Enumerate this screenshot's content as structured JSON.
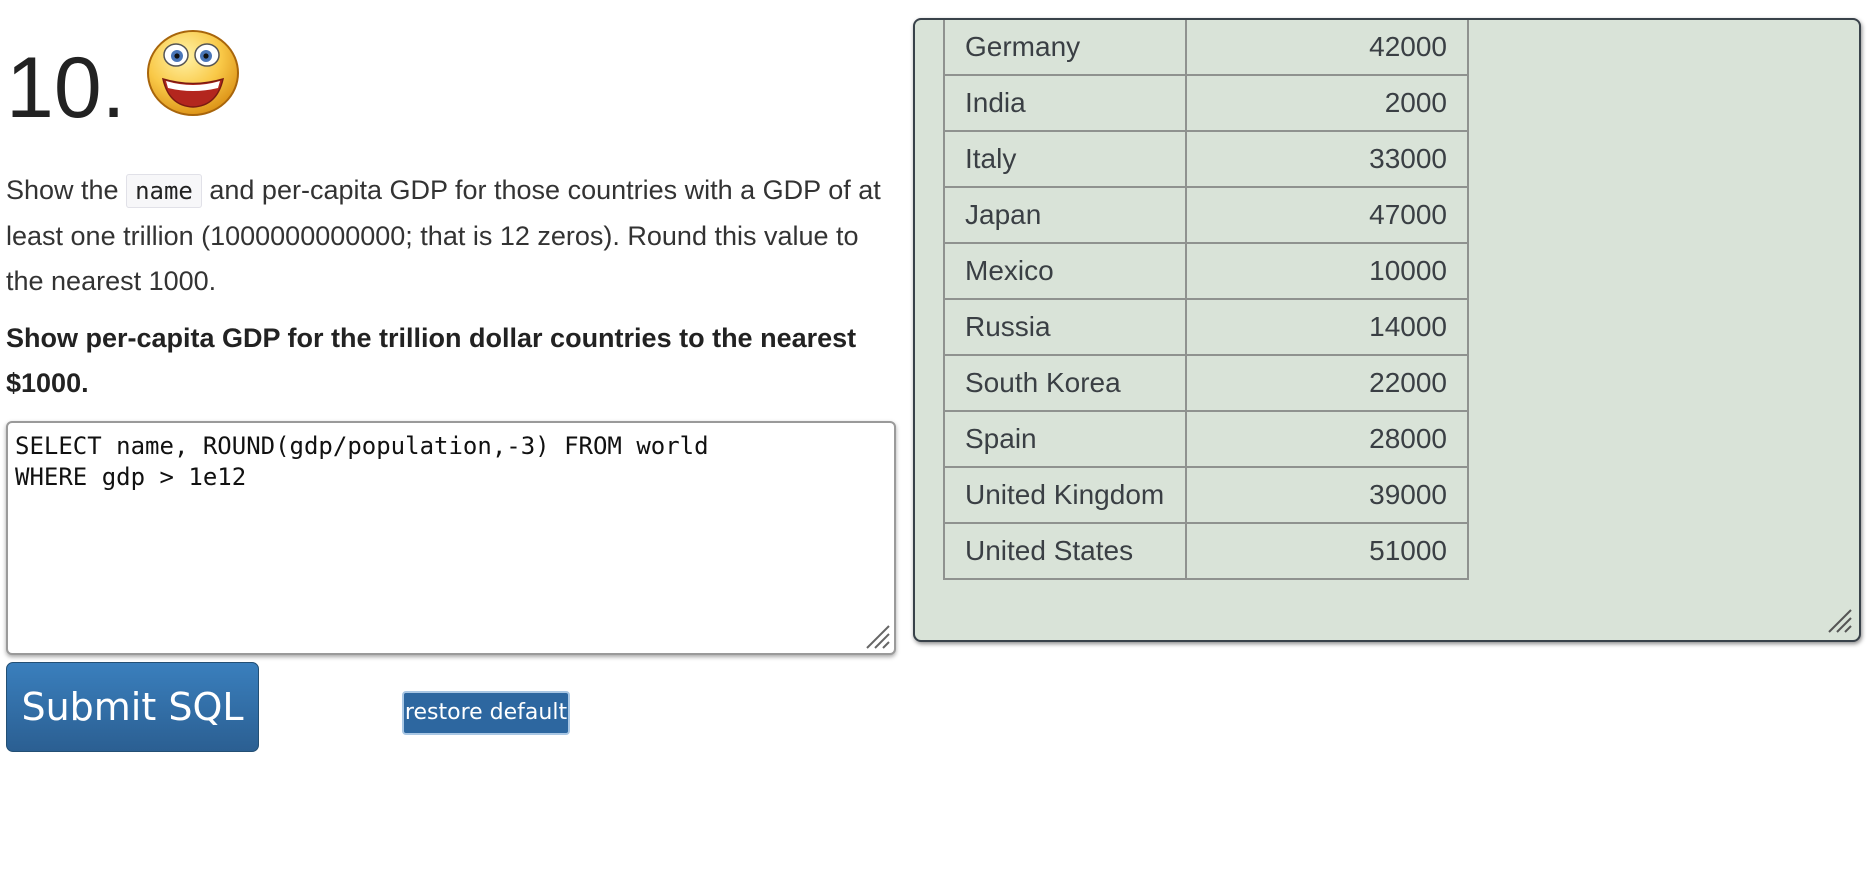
{
  "question": {
    "number": "10.",
    "icon": "smiley-face-icon",
    "description": {
      "part1": "Show the ",
      "code": "name",
      "part2": " and per-capita GDP for those countries with a GDP of at least one trillion (1000000000000; that is 12 zeros). Round this value to the nearest 1000."
    },
    "task": "Show per-capita GDP for the trillion dollar countries to the nearest $1000."
  },
  "editor": {
    "lines": [
      "SELECT name, ROUND(gdp/population,-3) FROM world",
      "WHERE gdp > 1e12"
    ]
  },
  "buttons": {
    "submit_label": "Submit SQL",
    "restore_label": "restore default"
  },
  "results": {
    "rows": [
      {
        "name": "Germany",
        "value": "42000"
      },
      {
        "name": "India",
        "value": "2000"
      },
      {
        "name": "Italy",
        "value": "33000"
      },
      {
        "name": "Japan",
        "value": "47000"
      },
      {
        "name": "Mexico",
        "value": "10000"
      },
      {
        "name": "Russia",
        "value": "14000"
      },
      {
        "name": "South Korea",
        "value": "22000"
      },
      {
        "name": "Spain",
        "value": "28000"
      },
      {
        "name": "United Kingdom",
        "value": "39000"
      },
      {
        "name": "United States",
        "value": "51000"
      }
    ]
  },
  "colors": {
    "submit_button": "#2b5f92",
    "result_panel_bg": "#d9e3d8",
    "result_panel_border": "#39424a"
  }
}
